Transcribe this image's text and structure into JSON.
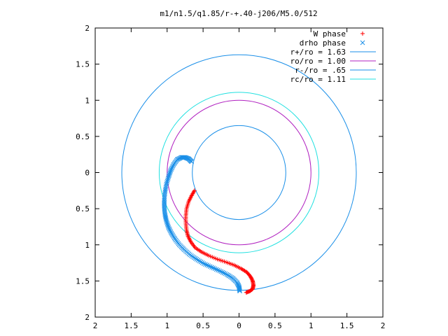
{
  "chart_data": {
    "type": "scatter",
    "title": "m1/n1.5/q1.85/r-+.40-j206/M5.0/512",
    "xlabel": "",
    "ylabel": "",
    "xlim": [
      -2,
      2
    ],
    "ylim": [
      -2,
      2
    ],
    "x_ticks": [
      -2,
      -1.5,
      -1,
      -0.5,
      0,
      0.5,
      1,
      1.5,
      2
    ],
    "y_ticks": [
      -2,
      -1.5,
      -1,
      -0.5,
      0,
      0.5,
      1,
      1.5,
      2
    ],
    "x_tick_labels": [
      "2",
      "1.5",
      "1",
      "0.5",
      "0",
      "0.5",
      "1",
      "1.5",
      "2"
    ],
    "y_tick_labels": [
      "2",
      "1.5",
      "1",
      "0.5",
      "0",
      "0.5",
      "1",
      "1.5",
      "2"
    ],
    "grid": false,
    "legend_position": "top-right",
    "series": [
      {
        "name": "W phase",
        "kind": "points",
        "marker": "plus",
        "color": "#ff0000",
        "x": [
          -0.62,
          -0.66,
          -0.7,
          -0.73,
          -0.74,
          -0.74,
          -0.73,
          -0.71,
          -0.67,
          -0.61,
          -0.52,
          -0.42,
          -0.3,
          -0.18,
          -0.07,
          0.03,
          0.11,
          0.16,
          0.19,
          0.2,
          0.19,
          0.15,
          0.1
        ],
        "y": [
          -0.25,
          -0.32,
          -0.4,
          -0.5,
          -0.6,
          -0.7,
          -0.8,
          -0.88,
          -0.96,
          -1.04,
          -1.1,
          -1.15,
          -1.2,
          -1.24,
          -1.28,
          -1.33,
          -1.38,
          -1.44,
          -1.5,
          -1.56,
          -1.61,
          -1.64,
          -1.66
        ]
      },
      {
        "name": "drho phase",
        "kind": "points",
        "marker": "cross",
        "color": "#1a8fe8",
        "x": [
          -0.66,
          -0.7,
          -0.75,
          -0.8,
          -0.86,
          -0.91,
          -0.95,
          -0.98,
          -1.01,
          -1.03,
          -1.04,
          -1.04,
          -1.03,
          -1.01,
          -0.98,
          -0.94,
          -0.89,
          -0.83,
          -0.76,
          -0.68,
          -0.59,
          -0.49,
          -0.38,
          -0.27,
          -0.17,
          -0.09,
          -0.03,
          0.0,
          0.01
        ],
        "y": [
          0.15,
          0.19,
          0.21,
          0.21,
          0.18,
          0.11,
          0.03,
          -0.06,
          -0.16,
          -0.27,
          -0.38,
          -0.48,
          -0.58,
          -0.67,
          -0.76,
          -0.84,
          -0.92,
          -1.0,
          -1.07,
          -1.14,
          -1.2,
          -1.26,
          -1.31,
          -1.36,
          -1.41,
          -1.46,
          -1.52,
          -1.58,
          -1.64
        ]
      },
      {
        "name": "r+/ro = 1.63",
        "kind": "circle",
        "radius": 1.63,
        "color": "#1a8fe8"
      },
      {
        "name": "ro/ro = 1.00",
        "kind": "circle",
        "radius": 1.0,
        "color": "#b020c0"
      },
      {
        "name": "r-/ro = .65",
        "kind": "circle",
        "radius": 0.65,
        "color": "#1a8fe8"
      },
      {
        "name": "rc/ro = 1.11",
        "kind": "circle",
        "radius": 1.11,
        "color": "#20e0e0"
      }
    ]
  }
}
